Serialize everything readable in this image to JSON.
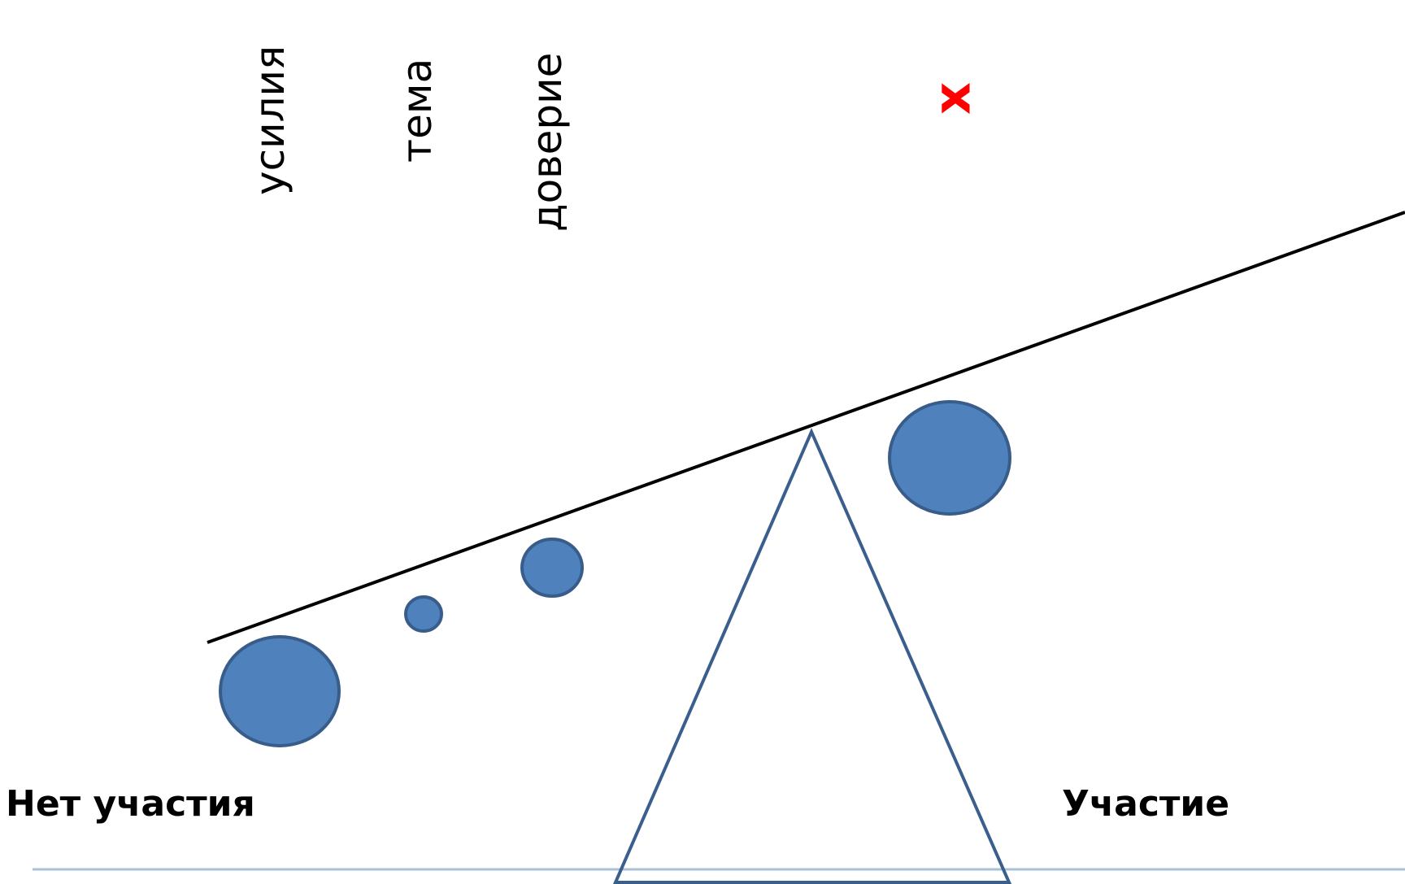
{
  "labels": {
    "effort": "усилия",
    "topic": "тема",
    "trust": "доверие",
    "cross": "x",
    "no_participation": "Нет участия",
    "participation": "Участие"
  },
  "colors": {
    "circle_fill": "#4f81bd",
    "circle_stroke": "#385d8a",
    "triangle_stroke": "#3a5f8c",
    "beam": "#000000",
    "cross": "#ff0000",
    "footer_line": "#a8c0d8"
  },
  "icons": {
    "cross": "cross-mark-icon"
  }
}
